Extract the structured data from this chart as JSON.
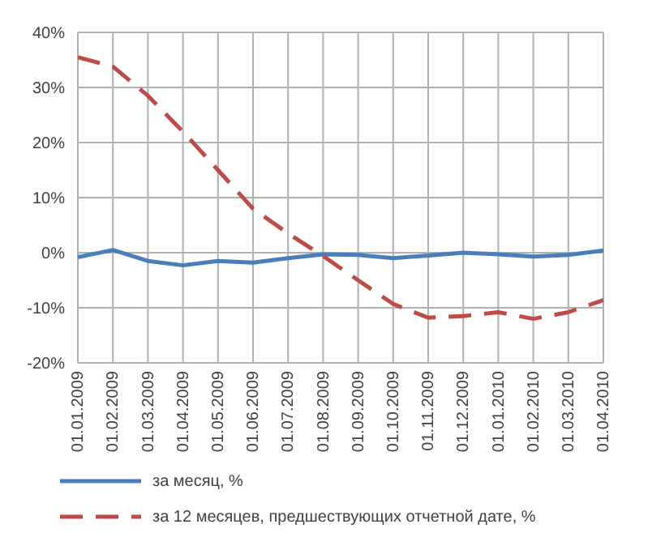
{
  "chart_data": {
    "type": "line",
    "categories": [
      "01.01.2009",
      "01.02.2009",
      "01.03.2009",
      "01.04.2009",
      "01.05.2009",
      "01.06.2009",
      "01.07.2009",
      "01.08.2009",
      "01.09.2009",
      "01.10.2009",
      "01.11.2009",
      "01.12.2009",
      "01.01.2010",
      "01.02.2010",
      "01.03.2010",
      "01.04.2010"
    ],
    "series": [
      {
        "name": "за месяц, %",
        "color": "#4a7ebb",
        "line_style": "solid",
        "values": [
          -0.8,
          0.5,
          -1.5,
          -2.3,
          -1.5,
          -1.8,
          -1.0,
          -0.3,
          -0.4,
          -1.0,
          -0.5,
          0.0,
          -0.3,
          -0.7,
          -0.4,
          0.4
        ]
      },
      {
        "name": "за 12 месяцев, предшествующих отчетной дате, %",
        "color": "#be4b48",
        "line_style": "dashed",
        "values": [
          35.5,
          33.8,
          28.5,
          22.0,
          15.0,
          8.0,
          3.5,
          -0.6,
          -5.0,
          -9.3,
          -11.8,
          -11.5,
          -10.8,
          -12.0,
          -10.8,
          -8.6
        ]
      }
    ],
    "ylim": [
      -20,
      40
    ],
    "yticks": [
      {
        "value": -20,
        "label": "-20%"
      },
      {
        "value": -10,
        "label": "-10%"
      },
      {
        "value": 0,
        "label": "0%"
      },
      {
        "value": 10,
        "label": "10%"
      },
      {
        "value": 20,
        "label": "20%"
      },
      {
        "value": 30,
        "label": "30%"
      },
      {
        "value": 40,
        "label": "40%"
      }
    ],
    "grid": true,
    "legend": "bottom",
    "marker": "none"
  }
}
